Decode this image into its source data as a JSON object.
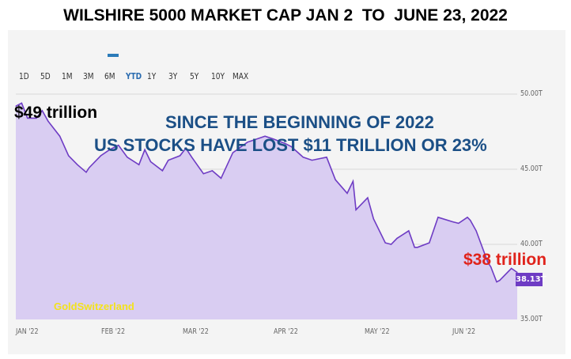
{
  "title": "WILSHIRE 5000 MARKET CAP JAN 2  TO  JUNE 23, 2022",
  "range_buttons": [
    "1D",
    "5D",
    "1M",
    "3M",
    "6M",
    "YTD",
    "1Y",
    "3Y",
    "5Y",
    "10Y",
    "MAX"
  ],
  "active_range": "YTD",
  "annotations": {
    "start": "$49 trillion",
    "line1": "SINCE THE BEGINNING OF 2022",
    "line2": "US STOCKS HAVE LOST $11 TRILLION OR 23%",
    "end": "$38 trillion"
  },
  "watermark": "GoldSwitzerland",
  "last_value_label": "38.13T",
  "colors": {
    "line": "#6e3cc4",
    "fill": "#d9cdf2",
    "annotation_blue": "#1b4f86",
    "annotation_red": "#e0231b",
    "watermark": "#f3e21c"
  },
  "chart_data": {
    "type": "area",
    "title": "WILSHIRE 5000 MARKET CAP JAN 2  TO  JUNE 23, 2022",
    "x_tick_labels": [
      "JAN '22",
      "FEB '22",
      "MAR '22",
      "APR '22",
      "MAY '22",
      "JUN '22"
    ],
    "y_tick_labels": [
      "50.00T",
      "45.00T",
      "40.00T",
      "35.00T"
    ],
    "ylim": [
      35,
      51
    ],
    "y_unit": "T",
    "x": [
      "2022-01-03",
      "2022-01-05",
      "2022-01-07",
      "2022-01-10",
      "2022-01-12",
      "2022-01-14",
      "2022-01-18",
      "2022-01-21",
      "2022-01-24",
      "2022-01-27",
      "2022-01-28",
      "2022-02-01",
      "2022-02-04",
      "2022-02-07",
      "2022-02-10",
      "2022-02-14",
      "2022-02-16",
      "2022-02-18",
      "2022-02-22",
      "2022-02-24",
      "2022-02-28",
      "2022-03-02",
      "2022-03-04",
      "2022-03-08",
      "2022-03-11",
      "2022-03-14",
      "2022-03-18",
      "2022-03-23",
      "2022-03-29",
      "2022-04-01",
      "2022-04-05",
      "2022-04-07",
      "2022-04-11",
      "2022-04-14",
      "2022-04-19",
      "2022-04-22",
      "2022-04-26",
      "2022-04-28",
      "2022-04-29",
      "2022-05-03",
      "2022-05-05",
      "2022-05-09",
      "2022-05-11",
      "2022-05-13",
      "2022-05-17",
      "2022-05-19",
      "2022-05-20",
      "2022-05-24",
      "2022-05-27",
      "2022-06-01",
      "2022-06-03",
      "2022-06-06",
      "2022-06-07",
      "2022-06-09",
      "2022-06-13",
      "2022-06-14",
      "2022-06-16",
      "2022-06-17",
      "2022-06-21",
      "2022-06-23"
    ],
    "y": [
      49.2,
      49.4,
      48.4,
      48.4,
      48.9,
      48.2,
      47.2,
      45.9,
      45.3,
      44.8,
      45.1,
      45.9,
      46.3,
      46.6,
      45.8,
      45.3,
      46.3,
      45.5,
      44.9,
      45.6,
      45.9,
      46.4,
      45.8,
      44.7,
      44.9,
      44.4,
      46.1,
      46.8,
      47.2,
      47.0,
      46.7,
      46.5,
      45.8,
      45.6,
      45.8,
      44.3,
      43.4,
      44.2,
      42.3,
      43.1,
      41.7,
      40.1,
      40.0,
      40.4,
      40.9,
      39.8,
      39.8,
      40.1,
      41.8,
      41.5,
      41.4,
      41.8,
      41.6,
      40.9,
      38.8,
      38.5,
      37.5,
      37.6,
      38.4,
      38.13
    ],
    "grid": true,
    "legend": "none"
  }
}
